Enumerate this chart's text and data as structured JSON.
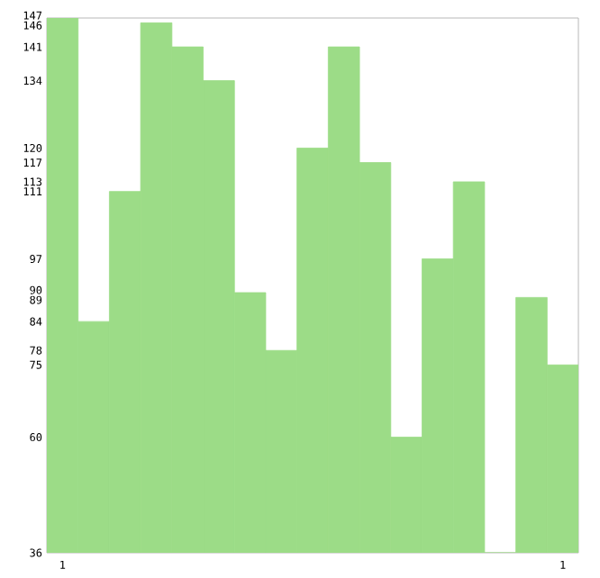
{
  "chart_data": {
    "type": "bar",
    "categories": [
      "1",
      null,
      null,
      null,
      null,
      null,
      null,
      null,
      null,
      null,
      null,
      null,
      null,
      null,
      null,
      null,
      "1"
    ],
    "values": [
      147,
      84,
      111,
      146,
      141,
      134,
      90,
      78,
      120,
      141,
      117,
      60,
      97,
      113,
      36,
      89,
      75
    ],
    "color": "#9cdc87",
    "ylim": [
      36,
      147
    ],
    "yticks": [
      36,
      60,
      75,
      78,
      84,
      89,
      90,
      97,
      111,
      113,
      117,
      120,
      134,
      141,
      146,
      147
    ],
    "grid": false
  }
}
